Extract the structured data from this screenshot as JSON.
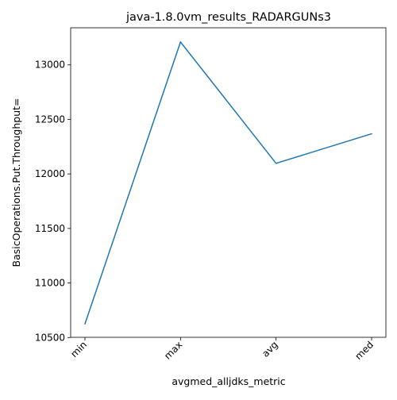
{
  "chart_data": {
    "type": "line",
    "title": "java-1.8.0vm_results_RADARGUNs3",
    "xlabel": "avgmed_alljdks_metric",
    "ylabel": "BasicOperations.Put.Throughput=",
    "categories": [
      "min",
      "max",
      "avg",
      "med"
    ],
    "series": [
      {
        "values": [
          10625,
          13210,
          12097,
          12368
        ]
      }
    ],
    "ylim": [
      10502,
      13340
    ],
    "yticks": [
      10500,
      11000,
      11500,
      12000,
      12500,
      13000
    ],
    "grid": false,
    "line_color": "#1f77b4"
  }
}
